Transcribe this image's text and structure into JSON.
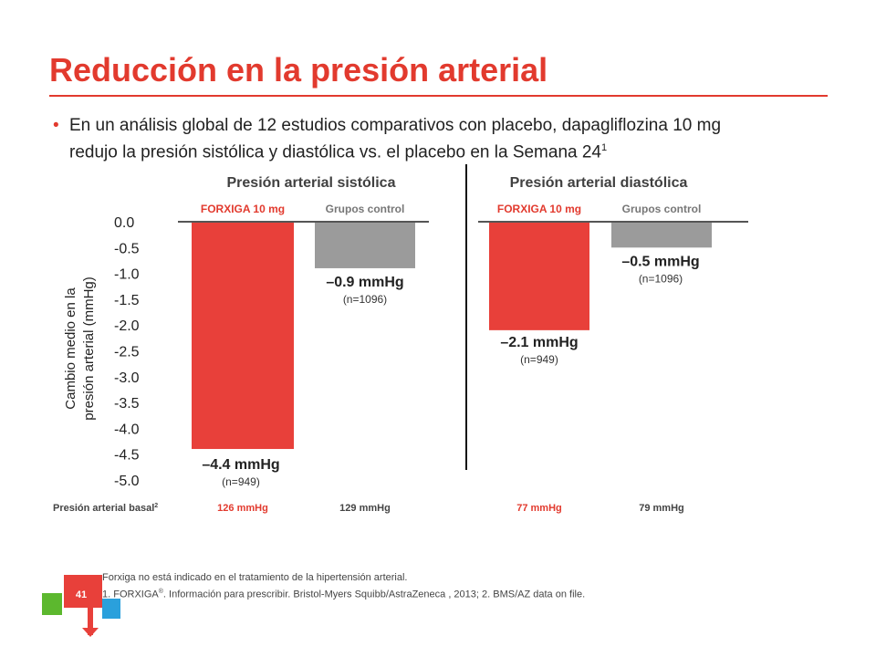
{
  "title": "Reducción en la presión arterial",
  "bullet": {
    "line1": "En un análisis global de 12 estudios comparativos con placebo,  dapagliflozina 10 mg",
    "line2": "redujo la presión sistólica y diastólica vs. el placebo en la Semana 24",
    "sup": "1"
  },
  "colors": {
    "red": "#e8403a",
    "gray": "#9b9b9b",
    "accent": "#e23a2e"
  },
  "chart_data": {
    "type": "bar",
    "ylabel": "Cambio medio en la presión arterial (mmHg)",
    "ylabel_lines": [
      "Cambio medio en la",
      "presión arterial (mmHg)"
    ],
    "ylim": [
      -5.0,
      0.0
    ],
    "yticks": [
      "0.0",
      "-0.5",
      "-1.0",
      "-1.5",
      "-2.0",
      "-2.5",
      "-3.0",
      "-3.5",
      "-4.0",
      "-4.5",
      "-5.0"
    ],
    "tick_values": [
      0,
      -0.5,
      -1.0,
      -1.5,
      -2.0,
      -2.5,
      -3.0,
      -3.5,
      -4.0,
      -4.5,
      -5.0
    ],
    "panels": [
      {
        "title": "Presión arterial sistólica",
        "bars": [
          {
            "name": "FORXIGA 10 mg",
            "value": -4.4,
            "label": "–4.4 mmHg",
            "n": "(n=949)",
            "color": "red",
            "baseline": "126 mmHg"
          },
          {
            "name": "Grupos control",
            "value": -0.9,
            "label": "–0.9 mmHg",
            "n": "(n=1096)",
            "color": "gray",
            "baseline": "129 mmHg"
          }
        ]
      },
      {
        "title": "Presión arterial diastólica",
        "bars": [
          {
            "name": "FORXIGA 10 mg",
            "value": -2.1,
            "label": "–2.1 mmHg",
            "n": "(n=949)",
            "color": "red",
            "baseline": "77 mmHg"
          },
          {
            "name": "Grupos control",
            "value": -0.5,
            "label": "–0.5 mmHg",
            "n": "(n=1096)",
            "color": "gray",
            "baseline": "79 mmHg"
          }
        ]
      }
    ],
    "baseline_label": "Presión arterial basal",
    "baseline_sup": "2"
  },
  "footer": {
    "line1": "Forxiga no está indicado en el tratamiento de la hipertensión arterial.",
    "line2_a": "1. FORXIGA",
    "line2_reg": "®",
    "line2_b": ". Información para prescribir. Bristol-Myers Squibb/AstraZeneca , 2013; 2. BMS/AZ data on file."
  },
  "slide_number": "41"
}
